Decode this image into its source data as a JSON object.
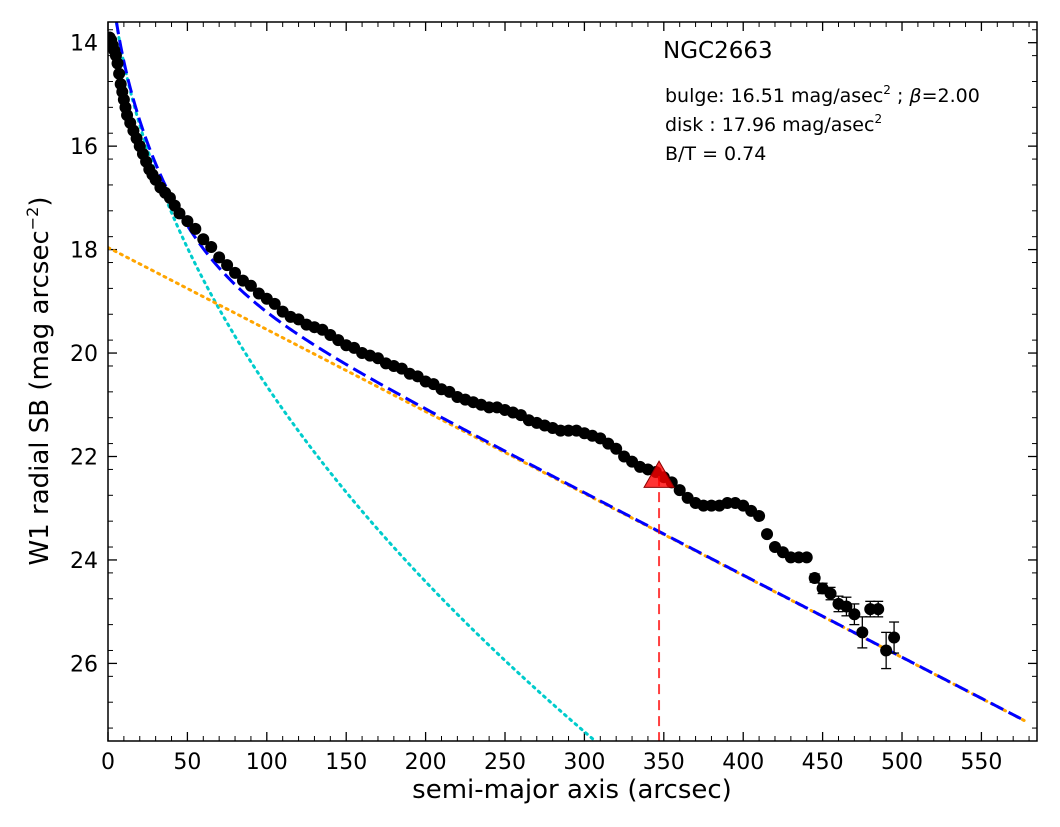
{
  "chart_data": {
    "type": "scatter",
    "title": "NGC2663",
    "xlabel": "semi-major axis (arcsec)",
    "ylabel": "W1 radial SB (mag arcsec",
    "ylabel_sup": "−2",
    "ylabel_tail": ")",
    "xlim": [
      0,
      585
    ],
    "ylim": [
      27.5,
      13.6
    ],
    "y_inverted": true,
    "x_ticks": [
      0,
      50,
      100,
      150,
      200,
      250,
      300,
      350,
      400,
      450,
      500,
      550
    ],
    "y_ticks": [
      14,
      16,
      18,
      20,
      22,
      24,
      26
    ],
    "grid": false,
    "annotations": {
      "bulge": {
        "prefix": "bulge: 16.51 mag/asec",
        "sup": "2",
        "sep": " ; ",
        "beta_symbol": "β",
        "beta_value": "=2.00"
      },
      "disk": {
        "prefix": "disk  : 17.96 mag/asec",
        "sup": "2"
      },
      "bt": "B/T = 0.74"
    },
    "models": {
      "bulge": {
        "color": "#00cccc",
        "mu_e": 16.51,
        "scale": 30,
        "exponent": 2.0
      },
      "disk": {
        "color": "#ffa500",
        "mu0": 17.96,
        "h": 68.5
      },
      "total": {
        "color": "#0000ff",
        "xmax": 578
      }
    },
    "marker": {
      "x": 347,
      "y": 22.38,
      "color": "#ff0000"
    },
    "points": [
      [
        1,
        13.9
      ],
      [
        2,
        13.95
      ],
      [
        3,
        14.05
      ],
      [
        4,
        14.15
      ],
      [
        5,
        14.25
      ],
      [
        6,
        14.4
      ],
      [
        7,
        14.6
      ],
      [
        8,
        14.8
      ],
      [
        9,
        14.95
      ],
      [
        10,
        15.1
      ],
      [
        11,
        15.25
      ],
      [
        12,
        15.4
      ],
      [
        14,
        15.55
      ],
      [
        16,
        15.7
      ],
      [
        18,
        15.85
      ],
      [
        20,
        16.0
      ],
      [
        22,
        16.15
      ],
      [
        24,
        16.3
      ],
      [
        26,
        16.45
      ],
      [
        28,
        16.55
      ],
      [
        30,
        16.65
      ],
      [
        33,
        16.8
      ],
      [
        36,
        16.9
      ],
      [
        39,
        17.0
      ],
      [
        42,
        17.15
      ],
      [
        45,
        17.3
      ],
      [
        50,
        17.45
      ],
      [
        55,
        17.6
      ],
      [
        60,
        17.8
      ],
      [
        65,
        17.95
      ],
      [
        70,
        18.15
      ],
      [
        75,
        18.3
      ],
      [
        80,
        18.45
      ],
      [
        85,
        18.6
      ],
      [
        90,
        18.7
      ],
      [
        95,
        18.85
      ],
      [
        100,
        18.95
      ],
      [
        105,
        19.05
      ],
      [
        110,
        19.2
      ],
      [
        115,
        19.3
      ],
      [
        120,
        19.35
      ],
      [
        125,
        19.45
      ],
      [
        130,
        19.5
      ],
      [
        135,
        19.55
      ],
      [
        140,
        19.65
      ],
      [
        145,
        19.75
      ],
      [
        150,
        19.85
      ],
      [
        155,
        19.9
      ],
      [
        160,
        20.0
      ],
      [
        165,
        20.05
      ],
      [
        170,
        20.1
      ],
      [
        175,
        20.2
      ],
      [
        180,
        20.25
      ],
      [
        185,
        20.3
      ],
      [
        190,
        20.4
      ],
      [
        195,
        20.45
      ],
      [
        200,
        20.55
      ],
      [
        205,
        20.6
      ],
      [
        210,
        20.7
      ],
      [
        215,
        20.75
      ],
      [
        220,
        20.85
      ],
      [
        225,
        20.9
      ],
      [
        230,
        20.95
      ],
      [
        235,
        21.0
      ],
      [
        240,
        21.05
      ],
      [
        245,
        21.05
      ],
      [
        250,
        21.1
      ],
      [
        255,
        21.15
      ],
      [
        260,
        21.2
      ],
      [
        265,
        21.3
      ],
      [
        270,
        21.35
      ],
      [
        275,
        21.4
      ],
      [
        280,
        21.45
      ],
      [
        285,
        21.5
      ],
      [
        290,
        21.5
      ],
      [
        295,
        21.5
      ],
      [
        300,
        21.55
      ],
      [
        305,
        21.6
      ],
      [
        310,
        21.65
      ],
      [
        315,
        21.75
      ],
      [
        320,
        21.85
      ],
      [
        325,
        22.0
      ],
      [
        330,
        22.1
      ],
      [
        335,
        22.2
      ],
      [
        340,
        22.25
      ],
      [
        345,
        22.3
      ],
      [
        350,
        22.4
      ],
      [
        355,
        22.5
      ],
      [
        360,
        22.65
      ],
      [
        365,
        22.8
      ],
      [
        370,
        22.9
      ],
      [
        375,
        22.95
      ],
      [
        380,
        22.95
      ],
      [
        385,
        22.95
      ],
      [
        390,
        22.9
      ],
      [
        395,
        22.9
      ],
      [
        400,
        22.95
      ],
      [
        405,
        23.05
      ],
      [
        410,
        23.15
      ],
      [
        415,
        23.5
      ],
      [
        420,
        23.75
      ],
      [
        425,
        23.85
      ],
      [
        430,
        23.95
      ],
      [
        435,
        23.95
      ],
      [
        440,
        23.95
      ],
      [
        445,
        24.35
      ],
      [
        450,
        24.55
      ],
      [
        455,
        24.65
      ],
      [
        460,
        24.85
      ],
      [
        465,
        24.9
      ],
      [
        470,
        25.05
      ],
      [
        475,
        25.4
      ],
      [
        480,
        24.95
      ],
      [
        485,
        24.95
      ],
      [
        490,
        25.75
      ],
      [
        495,
        25.5
      ]
    ],
    "error_bars": [
      [
        445,
        0.08
      ],
      [
        450,
        0.1
      ],
      [
        455,
        0.12
      ],
      [
        460,
        0.15
      ],
      [
        465,
        0.18
      ],
      [
        470,
        0.2
      ],
      [
        475,
        0.3
      ],
      [
        480,
        0.15
      ],
      [
        485,
        0.15
      ],
      [
        490,
        0.35
      ],
      [
        495,
        0.3
      ]
    ]
  }
}
